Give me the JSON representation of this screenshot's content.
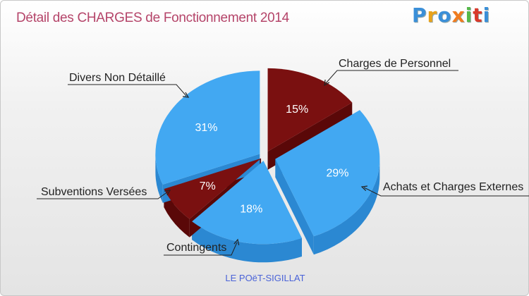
{
  "title": "Détail des CHARGES de Fonctionnement 2014",
  "logo": {
    "letters": [
      "P",
      "r",
      "o",
      "x",
      "i",
      "t",
      "i"
    ],
    "colors": [
      "#3a8fd8",
      "#e8a21a",
      "#3a8fd8",
      "#f07c1f",
      "#56b84a",
      "#d8392b",
      "#3a8fd8"
    ]
  },
  "footer": "LE POëT-SIGILLAT",
  "chart_data": {
    "type": "pie",
    "title": "Détail des CHARGES de Fonctionnement 2014",
    "slices": [
      {
        "name": "Charges de Personnel",
        "value": 15,
        "label": "15%",
        "color": "#7a1010",
        "side": "#5a0808"
      },
      {
        "name": "Achats et Charges Externes",
        "value": 29,
        "label": "29%",
        "color": "#42a8f2",
        "side": "#2b88d2"
      },
      {
        "name": "Contingents",
        "value": 18,
        "label": "18%",
        "color": "#42a8f2",
        "side": "#2b88d2"
      },
      {
        "name": "Subventions Versées",
        "value": 7,
        "label": "7%",
        "color": "#7a1010",
        "side": "#5a0808"
      },
      {
        "name": "Divers Non Détaillé",
        "value": 31,
        "label": "31%",
        "color": "#42a8f2",
        "side": "#2b88d2"
      }
    ]
  }
}
